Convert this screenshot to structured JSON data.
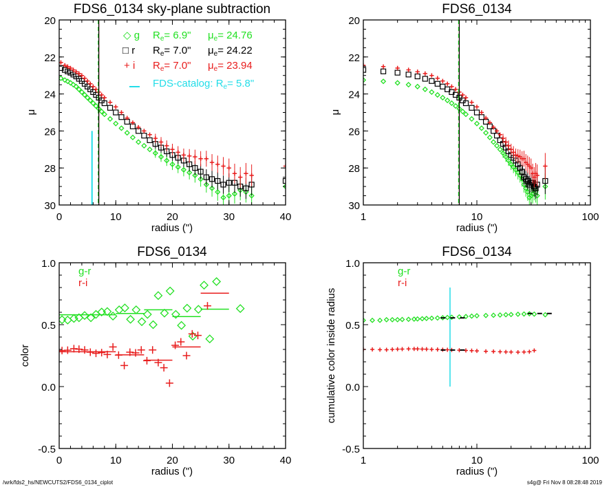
{
  "colors": {
    "g": "#22e022",
    "r": "#000000",
    "i": "#e81c1c",
    "gr": "#22e022",
    "ri": "#e81c1c",
    "catalog": "#22dde8"
  },
  "footer": {
    "left": "/wrk/fds2_hs/NEWCUTS2/FDS6_0134_ciplot",
    "right": "s4g@  Fri Nov  8 08:28:48 2019"
  },
  "legend_profile": {
    "r_symbol": "R",
    "mu_symbol": "μ",
    "sub": "e",
    "entries": [
      {
        "band": "g",
        "re": "=   6.9\"",
        "mue": "= 24.76"
      },
      {
        "band": "r",
        "re": "=   7.0\"",
        "mue": "= 24.22"
      },
      {
        "band": "i",
        "re": "=   7.0\"",
        "mue": "= 23.94"
      }
    ],
    "catalog_label": "FDS-catalog: R",
    "catalog_value": "=   5.8\""
  },
  "legend_color": {
    "gr": "g-r",
    "ri": "r-i"
  },
  "chart_data": [
    {
      "type": "scatter",
      "title": "FDS6_0134 sky-plane subtraction",
      "xlabel": "radius (\")",
      "ylabel": "μ",
      "xlim": [
        0,
        40
      ],
      "ylim": [
        30,
        20
      ],
      "xscale": "linear",
      "xticks": [
        "0",
        "10",
        "20",
        "30",
        "40"
      ],
      "yticks": [
        "20",
        "22",
        "24",
        "26",
        "28",
        "30"
      ],
      "x": [
        0.3,
        1,
        1.5,
        2,
        2.5,
        3,
        3.5,
        4,
        4.5,
        5,
        5.5,
        6,
        6.5,
        7,
        7.5,
        8,
        9,
        10,
        11,
        12,
        13,
        14,
        15,
        16,
        17,
        18,
        19,
        20,
        21,
        22,
        23,
        24,
        25,
        26,
        27,
        28,
        29,
        30,
        31,
        32,
        33,
        34,
        40
      ],
      "series": [
        {
          "name": "g",
          "marker": "diamond",
          "values": [
            23.15,
            23.25,
            23.32,
            23.4,
            23.5,
            23.6,
            23.75,
            23.9,
            24.05,
            24.2,
            24.35,
            24.5,
            24.65,
            24.8,
            24.95,
            25.1,
            25.35,
            25.6,
            25.85,
            26.1,
            26.35,
            26.6,
            26.8,
            27.0,
            27.2,
            27.4,
            27.6,
            27.8,
            27.95,
            28.1,
            28.25,
            28.4,
            28.6,
            28.9,
            29.1,
            29.3,
            29.6,
            29.5,
            29.4,
            29.2,
            29.3,
            29.5,
            29.0
          ]
        },
        {
          "name": "r",
          "marker": "square",
          "values": [
            22.6,
            22.7,
            22.78,
            22.85,
            22.95,
            23.05,
            23.18,
            23.3,
            23.45,
            23.6,
            23.75,
            23.9,
            24.05,
            24.2,
            24.35,
            24.5,
            24.75,
            25.0,
            25.25,
            25.5,
            25.75,
            26.0,
            26.25,
            26.5,
            26.7,
            26.9,
            27.1,
            27.3,
            27.45,
            27.6,
            27.8,
            28.0,
            28.2,
            28.5,
            28.6,
            28.7,
            28.9,
            28.8,
            28.8,
            29.0,
            29.1,
            28.9,
            28.7
          ]
        },
        {
          "name": "i",
          "marker": "plus",
          "values": [
            22.3,
            22.45,
            22.52,
            22.6,
            22.7,
            22.8,
            22.9,
            23.0,
            23.15,
            23.3,
            23.45,
            23.6,
            23.75,
            23.9,
            24.05,
            24.2,
            24.45,
            24.7,
            25.0,
            25.3,
            25.55,
            25.8,
            26.0,
            26.2,
            26.4,
            26.6,
            26.8,
            27.0,
            27.15,
            27.3,
            27.35,
            27.4,
            27.5,
            27.5,
            27.7,
            27.8,
            27.9,
            28.0,
            28.3,
            28.5,
            28.3,
            28.4,
            27.9
          ]
        }
      ],
      "vlines": [
        {
          "x": 7.0,
          "color": "i"
        },
        {
          "x": 6.9,
          "color": "g"
        },
        {
          "x": 7.0,
          "color": "r"
        }
      ],
      "catalog_line": {
        "x": 5.8,
        "y": [
          26,
          30
        ]
      }
    },
    {
      "type": "scatter",
      "title": "FDS6_0134",
      "xlabel": "radius (\")",
      "ylabel": "μ",
      "xlim": [
        1,
        100
      ],
      "ylim": [
        30,
        20
      ],
      "xscale": "log",
      "xticks": [
        "1",
        "10",
        "100"
      ],
      "yticks": [
        "20",
        "22",
        "24",
        "26",
        "28",
        "30"
      ],
      "same_profiles_as": "panel 1",
      "vlines": [
        {
          "x": 7.0,
          "color": "i"
        },
        {
          "x": 6.9,
          "color": "g"
        },
        {
          "x": 7.0,
          "color": "r"
        }
      ]
    },
    {
      "type": "scatter",
      "title": "FDS6_0134",
      "xlabel": "radius (\")",
      "ylabel": "color",
      "xlim": [
        0,
        40
      ],
      "ylim": [
        -0.5,
        1.0
      ],
      "xscale": "linear",
      "xticks": [
        "0",
        "10",
        "20",
        "30",
        "40"
      ],
      "yticks": [
        "1.0",
        "0.5",
        "0.0",
        "-0.5"
      ],
      "series": [
        {
          "name": "g-r",
          "marker": "diamond",
          "x": [
            0.5,
            1.5,
            2.6,
            3.5,
            4.5,
            5.6,
            6.5,
            7.5,
            8.5,
            9.5,
            10.6,
            11.6,
            12.6,
            13.6,
            14.6,
            15.6,
            16.6,
            17.5,
            18.6,
            19.6,
            20.6,
            21.6,
            22.6,
            23.6,
            24.6,
            25.6,
            26.6,
            27.8,
            32.0
          ],
          "values": [
            0.54,
            0.537,
            0.55,
            0.556,
            0.574,
            0.556,
            0.583,
            0.602,
            0.606,
            0.569,
            0.62,
            0.635,
            0.543,
            0.62,
            0.524,
            0.583,
            0.5,
            0.735,
            0.593,
            0.772,
            0.583,
            0.494,
            0.633,
            0.407,
            0.624,
            0.819,
            0.385,
            0.848,
            0.63
          ],
          "bins": [
            {
              "x": [
                0,
                10
              ],
              "y": 0.58
            },
            {
              "x": [
                10,
                15
              ],
              "y": 0.59
            },
            {
              "x": [
                15,
                20
              ],
              "y": 0.62
            },
            {
              "x": [
                20,
                25
              ],
              "y": 0.565
            },
            {
              "x": [
                25,
                30
              ],
              "y": 0.625
            }
          ]
        },
        {
          "name": "r-i",
          "marker": "plus",
          "x": [
            0.5,
            1.5,
            2.6,
            3.5,
            4.5,
            5.5,
            6.5,
            7.5,
            8.5,
            9.5,
            10.5,
            11.5,
            12.5,
            13.5,
            14.5,
            15.5,
            16.5,
            17.5,
            18.5,
            19.5,
            20.5,
            21.5,
            22.5,
            23.5,
            24.5,
            26.2
          ],
          "values": [
            0.291,
            0.294,
            0.306,
            0.302,
            0.296,
            0.278,
            0.269,
            0.274,
            0.259,
            0.32,
            0.254,
            0.17,
            0.278,
            0.272,
            0.296,
            0.209,
            0.296,
            0.194,
            0.152,
            0.028,
            0.333,
            0.361,
            0.25,
            0.426,
            0.413,
            0.652
          ],
          "bins": [
            {
              "x": [
                0,
                10
              ],
              "y": 0.281
            },
            {
              "x": [
                10,
                15
              ],
              "y": 0.256
            },
            {
              "x": [
                15,
                20
              ],
              "y": 0.213
            },
            {
              "x": [
                20,
                25
              ],
              "y": 0.32
            },
            {
              "x": [
                25,
                30
              ],
              "y": 0.754
            }
          ]
        }
      ]
    },
    {
      "type": "scatter",
      "title": "FDS6_0134",
      "xlabel": "radius (\")",
      "ylabel": "cumulative color inside radius",
      "xlim": [
        1,
        100
      ],
      "ylim": [
        -0.5,
        1.0
      ],
      "xscale": "log",
      "xticks": [
        "1",
        "10",
        "100"
      ],
      "yticks": [
        "1.0",
        "0.5",
        "0.0",
        "-0.5"
      ],
      "series": [
        {
          "name": "g-r",
          "marker": "diamond",
          "x": [
            1,
            1.2,
            1.4,
            1.6,
            1.8,
            2,
            2.2,
            2.5,
            2.8,
            3,
            3.3,
            3.6,
            4,
            4.5,
            5,
            5.5,
            6,
            7,
            8,
            9,
            10,
            12,
            14,
            16,
            18,
            20,
            23,
            26,
            29,
            32,
            40
          ],
          "values": [
            0.535,
            0.535,
            0.535,
            0.54,
            0.54,
            0.54,
            0.542,
            0.543,
            0.545,
            0.546,
            0.548,
            0.55,
            0.552,
            0.554,
            0.556,
            0.558,
            0.56,
            0.563,
            0.566,
            0.569,
            0.572,
            0.574,
            0.576,
            0.578,
            0.58,
            0.582,
            0.584,
            0.586,
            0.588,
            0.585,
            0.58
          ]
        },
        {
          "name": "r-i",
          "marker": "plus",
          "x": [
            1,
            1.2,
            1.4,
            1.6,
            1.8,
            2,
            2.2,
            2.5,
            2.8,
            3,
            3.3,
            3.6,
            4,
            4.5,
            5,
            5.5,
            6,
            7,
            8,
            9,
            10,
            12,
            14,
            16,
            18,
            20,
            23,
            26,
            29,
            32
          ],
          "values": [
            0.3,
            0.3,
            0.298,
            0.297,
            0.3,
            0.302,
            0.303,
            0.304,
            0.304,
            0.304,
            0.303,
            0.302,
            0.3,
            0.299,
            0.298,
            0.297,
            0.296,
            0.294,
            0.292,
            0.29,
            0.288,
            0.285,
            0.283,
            0.281,
            0.28,
            0.279,
            0.278,
            0.279,
            0.281,
            0.292
          ]
        }
      ],
      "black_segments": [
        {
          "x": [
            4.8,
            8
          ],
          "y": 0.555
        },
        {
          "x": [
            28,
            50
          ],
          "y": 0.59
        },
        {
          "x": [
            4.8,
            8
          ],
          "y": 0.295
        }
      ],
      "catalog_line": {
        "x": 5.8,
        "y": [
          0,
          0.8
        ]
      }
    }
  ]
}
